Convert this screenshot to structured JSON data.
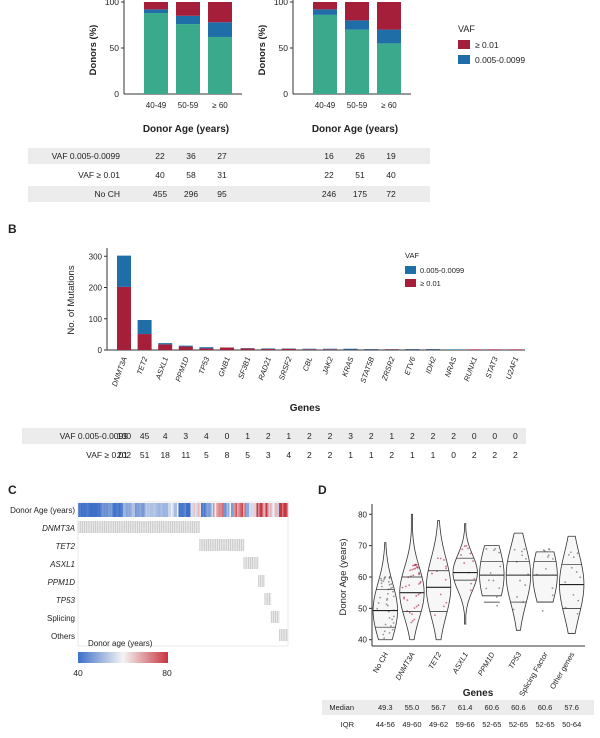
{
  "panel_a": {
    "ylabel": "Donors (%)",
    "xlabel": "Donor Age (years)",
    "legend_title": "VAF",
    "legend": [
      {
        "label": "≥ 0.01",
        "color": "#a51e3a"
      },
      {
        "label": "0.005-0.0099",
        "color": "#1f6ea8"
      }
    ],
    "table_labels": [
      "VAF 0.005-0.0099",
      "VAF ≥ 0.01",
      "No CH"
    ],
    "table_left": [
      [
        "22",
        "36",
        "27"
      ],
      [
        "40",
        "58",
        "31"
      ],
      [
        "455",
        "296",
        "95"
      ]
    ],
    "table_right": [
      [
        "16",
        "26",
        "19"
      ],
      [
        "22",
        "51",
        "40"
      ],
      [
        "246",
        "175",
        "72"
      ]
    ]
  },
  "panel_b": {
    "letter": "B",
    "ylabel": "No. of Mutations",
    "xlabel": "Genes",
    "legend_title": "VAF",
    "legend": [
      {
        "label": "0.005-0.0099",
        "color": "#1f6ea8"
      },
      {
        "label": "≥ 0.01",
        "color": "#a51e3a"
      }
    ],
    "table_labels": [
      "VAF 0.005-0.0099",
      "VAF ≥ 0.01"
    ]
  },
  "panel_c": {
    "letter": "C",
    "rows": [
      "Donor Age (years)",
      "DNMT3A",
      "TET2",
      "ASXL1",
      "PPM1D",
      "TP53",
      "Splicing",
      "Others"
    ],
    "colorbar_title": "Donor age (years)",
    "colorbar_min": "40",
    "colorbar_max": "80"
  },
  "panel_d": {
    "letter": "D",
    "ylabel": "Donor Age (years)",
    "xlabel": "Genes",
    "stat_labels": [
      "Median",
      "IQR"
    ],
    "medians": [
      "49.3",
      "55.0",
      "56.7",
      "61.4",
      "60.6",
      "60.6",
      "60.6",
      "57.6"
    ],
    "iqrs": [
      "44-56",
      "49-60",
      "49-62",
      "59-66",
      "52-65",
      "52-65",
      "52-65",
      "50-64"
    ]
  },
  "chart_data": [
    {
      "type": "bar",
      "stacked": true,
      "ylabel": "Donors (%)",
      "xlabel": "Donor Age (years)",
      "categories": [
        "40-49",
        "50-59",
        "≥ 60"
      ],
      "ylim": [
        0,
        100
      ],
      "series": [
        {
          "name": "No CH",
          "color": "#3aa98c",
          "values": [
            88,
            76,
            62
          ]
        },
        {
          "name": "0.005-0.0099",
          "color": "#1f6ea8",
          "values": [
            4,
            9,
            16
          ]
        },
        {
          "name": "≥ 0.01",
          "color": "#a51e3a",
          "values": [
            8,
            15,
            22
          ]
        }
      ]
    },
    {
      "type": "bar",
      "stacked": true,
      "ylabel": "Donors (%)",
      "xlabel": "Donor Age (years)",
      "categories": [
        "40-49",
        "50-59",
        "≥ 60"
      ],
      "ylim": [
        0,
        100
      ],
      "series": [
        {
          "name": "No CH",
          "color": "#3aa98c",
          "values": [
            86,
            70,
            55
          ]
        },
        {
          "name": "0.005-0.0099",
          "color": "#1f6ea8",
          "values": [
            6,
            10,
            15
          ]
        },
        {
          "name": "≥ 0.01",
          "color": "#a51e3a",
          "values": [
            8,
            20,
            30
          ]
        }
      ]
    },
    {
      "type": "bar",
      "stacked": true,
      "ylabel": "No. of Mutations",
      "xlabel": "Genes",
      "ylim": [
        0,
        320
      ],
      "yticks": [
        0,
        100,
        200,
        300
      ],
      "categories": [
        "DNMT3A",
        "TET2",
        "ASXL1",
        "PPM1D",
        "TP53",
        "GNB1",
        "SF3B1",
        "RAD21",
        "SRSF2",
        "CBL",
        "JAK2",
        "KRAS",
        "STAT5B",
        "ZRSR2",
        "ETV6",
        "IDH2",
        "NRAS",
        "RUNX1",
        "STAT3",
        "U2AF1"
      ],
      "series": [
        {
          "name": "VAF 0.005-0.0099",
          "color": "#1f6ea8",
          "values": [
            100,
            45,
            4,
            3,
            4,
            0,
            1,
            2,
            1,
            2,
            2,
            3,
            2,
            1,
            2,
            2,
            2,
            0,
            0,
            0
          ]
        },
        {
          "name": "VAF ≥ 0.01",
          "color": "#a51e3a",
          "values": [
            202,
            51,
            18,
            11,
            5,
            8,
            5,
            3,
            4,
            2,
            2,
            1,
            1,
            2,
            1,
            1,
            0,
            2,
            2,
            2
          ]
        }
      ]
    },
    {
      "type": "violin",
      "ylabel": "Donor Age (years)",
      "xlabel": "Genes",
      "ylim": [
        38,
        82
      ],
      "yticks": [
        40,
        50,
        60,
        70,
        80
      ],
      "categories": [
        "No CH",
        "DNMT3A",
        "TET2",
        "ASXL1",
        "PPM1D",
        "TP53",
        "Splicing Factor",
        "Other genes"
      ],
      "ranges": [
        [
          40,
          71
        ],
        [
          40,
          80
        ],
        [
          40,
          78
        ],
        [
          45,
          77
        ],
        [
          54,
          70
        ],
        [
          43,
          74
        ],
        [
          52,
          68
        ],
        [
          42,
          73
        ]
      ],
      "quartiles": [
        [
          44,
          49.3,
          56
        ],
        [
          49,
          55.0,
          60
        ],
        [
          49,
          56.7,
          62
        ],
        [
          59,
          61.4,
          66
        ],
        [
          52,
          60.6,
          65
        ],
        [
          52,
          60.6,
          65
        ],
        [
          52,
          60.6,
          65
        ],
        [
          50,
          57.6,
          64
        ]
      ]
    }
  ]
}
